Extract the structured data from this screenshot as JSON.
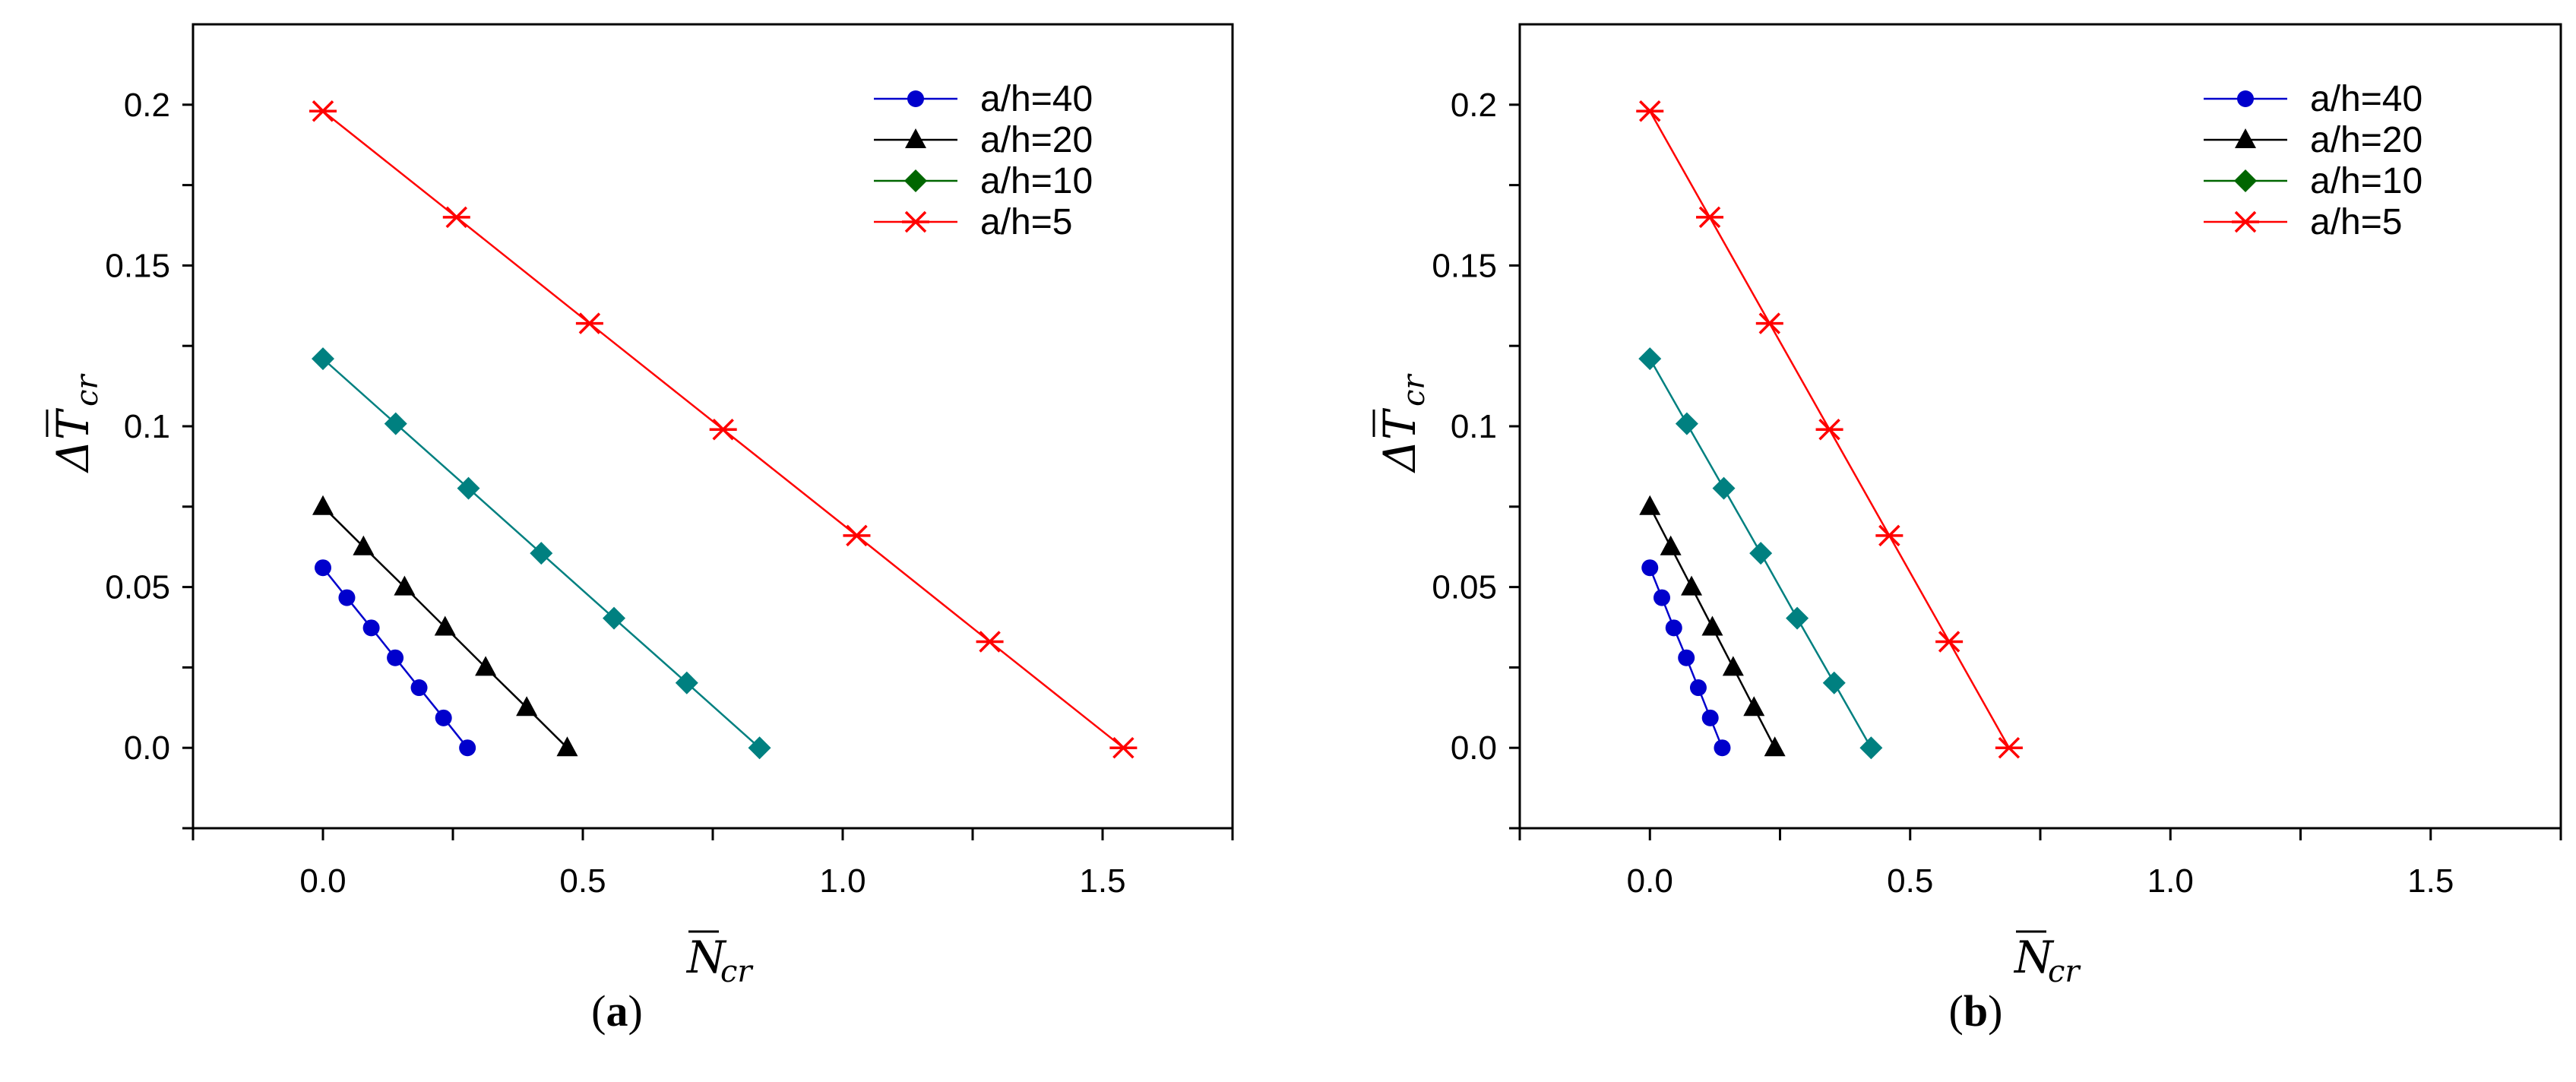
{
  "chart_data": [
    {
      "type": "line",
      "panel": "a",
      "caption": {
        "open": "(",
        "letter": "a",
        "close": ")"
      },
      "xlabel": {
        "main": "N",
        "sub": "cr"
      },
      "ylabel": {
        "main": "ΔT",
        "sub": "cr"
      },
      "xlim": [
        -0.25,
        1.75
      ],
      "ylim": [
        -0.025,
        0.225
      ],
      "x_ticks": [
        0.0,
        0.5,
        1.0,
        1.5
      ],
      "x_tick_labels": [
        "0.0",
        "0.5",
        "1.0",
        "1.5"
      ],
      "y_ticks": [
        0.0,
        0.05,
        0.1,
        0.15,
        0.2
      ],
      "y_tick_labels": [
        "0.0",
        "0.05",
        "0.1",
        "0.15",
        "0.2"
      ],
      "legend_position": "top-right",
      "series": [
        {
          "name": "a/h=40",
          "color": "#0000cc",
          "marker": "circle",
          "x": [
            0.0,
            0.046,
            0.093,
            0.139,
            0.185,
            0.232,
            0.278
          ],
          "y": [
            0.056,
            0.0467,
            0.0373,
            0.028,
            0.0187,
            0.0093,
            0.0
          ]
        },
        {
          "name": "a/h=20",
          "color": "#000000",
          "marker": "triangle",
          "x": [
            0.0,
            0.078,
            0.157,
            0.235,
            0.313,
            0.392,
            0.47
          ],
          "y": [
            0.075,
            0.0625,
            0.05,
            0.0375,
            0.025,
            0.0125,
            0.0
          ]
        },
        {
          "name": "a/h=10",
          "color": "#006600",
          "line_color": "#008080",
          "marker": "diamond",
          "x": [
            0.0,
            0.14,
            0.28,
            0.42,
            0.56,
            0.7,
            0.84
          ],
          "y": [
            0.121,
            0.1008,
            0.0807,
            0.0605,
            0.0403,
            0.0202,
            0.0
          ]
        },
        {
          "name": "a/h=5",
          "color": "#ff0000",
          "marker": "asterisk",
          "x": [
            0.0,
            0.257,
            0.513,
            0.77,
            1.027,
            1.283,
            1.54
          ],
          "y": [
            0.198,
            0.165,
            0.132,
            0.099,
            0.066,
            0.033,
            0.0
          ]
        }
      ]
    },
    {
      "type": "line",
      "panel": "b",
      "caption": {
        "open": "(",
        "letter": "b",
        "close": ")"
      },
      "xlabel": {
        "main": "N",
        "sub": "cr"
      },
      "ylabel": {
        "main": "ΔT",
        "sub": "cr"
      },
      "xlim": [
        -0.25,
        1.75
      ],
      "ylim": [
        -0.025,
        0.225
      ],
      "x_ticks": [
        0.0,
        0.5,
        1.0,
        1.5
      ],
      "x_tick_labels": [
        "0.0",
        "0.5",
        "1.0",
        "1.5"
      ],
      "y_ticks": [
        0.0,
        0.05,
        0.1,
        0.15,
        0.2
      ],
      "y_tick_labels": [
        "0.0",
        "0.05",
        "0.1",
        "0.15",
        "0.2"
      ],
      "legend_position": "top-right",
      "series": [
        {
          "name": "a/h=40",
          "color": "#0000cc",
          "marker": "circle",
          "x": [
            0.0,
            0.023,
            0.046,
            0.07,
            0.093,
            0.116,
            0.139
          ],
          "y": [
            0.056,
            0.0467,
            0.0373,
            0.028,
            0.0187,
            0.0093,
            0.0
          ]
        },
        {
          "name": "a/h=20",
          "color": "#000000",
          "marker": "triangle",
          "x": [
            0.0,
            0.04,
            0.08,
            0.12,
            0.16,
            0.2,
            0.24
          ],
          "y": [
            0.075,
            0.0625,
            0.05,
            0.0375,
            0.025,
            0.0125,
            0.0
          ]
        },
        {
          "name": "a/h=10",
          "color": "#006600",
          "line_color": "#008080",
          "marker": "diamond",
          "x": [
            0.0,
            0.071,
            0.142,
            0.213,
            0.283,
            0.354,
            0.425
          ],
          "y": [
            0.121,
            0.1008,
            0.0807,
            0.0605,
            0.0403,
            0.0202,
            0.0
          ]
        },
        {
          "name": "a/h=5",
          "color": "#ff0000",
          "marker": "asterisk",
          "x": [
            0.0,
            0.115,
            0.23,
            0.345,
            0.46,
            0.575,
            0.69
          ],
          "y": [
            0.198,
            0.165,
            0.132,
            0.099,
            0.066,
            0.033,
            0.0
          ]
        }
      ]
    }
  ]
}
